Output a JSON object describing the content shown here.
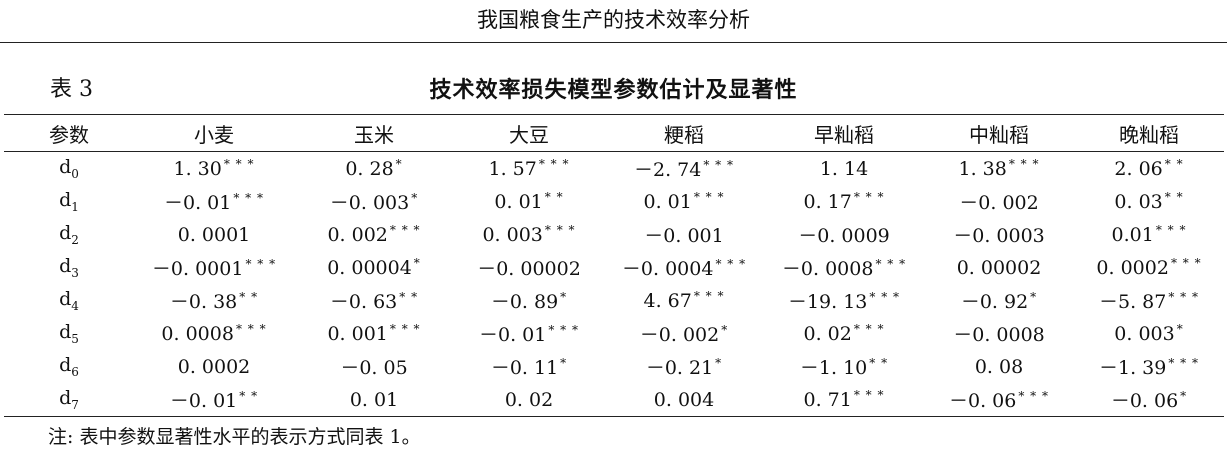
{
  "header": {
    "running_title": "我国粮食生产的技术效率分析"
  },
  "table": {
    "number": "表 3",
    "title": "技术效率损失模型参数估计及显著性",
    "columns": [
      "参数",
      "小麦",
      "玉米",
      "大豆",
      "粳稻",
      "早籼稻",
      "中籼稻",
      "晚籼稻"
    ],
    "rows": [
      {
        "base": "d",
        "sub": "0",
        "cells": [
          {
            "v": "1. 30",
            "s": "* * *"
          },
          {
            "v": "0. 28",
            "s": "*"
          },
          {
            "v": "1. 57",
            "s": "* * *"
          },
          {
            "v": "－2. 74",
            "s": "* * *"
          },
          {
            "v": "1. 14",
            "s": ""
          },
          {
            "v": "1. 38",
            "s": "* * *"
          },
          {
            "v": "2. 06",
            "s": "* *"
          }
        ]
      },
      {
        "base": "d",
        "sub": "1",
        "cells": [
          {
            "v": "－0. 01",
            "s": "* * *"
          },
          {
            "v": "－0. 003",
            "s": "*"
          },
          {
            "v": "0. 01",
            "s": "* *"
          },
          {
            "v": "0. 01",
            "s": "* * *"
          },
          {
            "v": "0. 17",
            "s": "* * *"
          },
          {
            "v": "－0. 002",
            "s": ""
          },
          {
            "v": "0. 03",
            "s": "* *"
          }
        ]
      },
      {
        "base": "d",
        "sub": "2",
        "cells": [
          {
            "v": "0. 0001",
            "s": ""
          },
          {
            "v": "0. 002",
            "s": "* * *"
          },
          {
            "v": "0. 003",
            "s": "* * *"
          },
          {
            "v": "－0. 001",
            "s": ""
          },
          {
            "v": "－0. 0009",
            "s": ""
          },
          {
            "v": "－0. 0003",
            "s": ""
          },
          {
            "v": "0.01",
            "s": "* * *"
          }
        ]
      },
      {
        "base": "d",
        "sub": "3",
        "cells": [
          {
            "v": "－0. 0001",
            "s": "* * *"
          },
          {
            "v": "0. 00004",
            "s": "*"
          },
          {
            "v": "－0. 00002",
            "s": ""
          },
          {
            "v": "－0. 0004",
            "s": "* * *"
          },
          {
            "v": "－0. 0008",
            "s": "* * *"
          },
          {
            "v": "0. 00002",
            "s": ""
          },
          {
            "v": "0. 0002",
            "s": "* * *"
          }
        ]
      },
      {
        "base": "d",
        "sub": "4",
        "cells": [
          {
            "v": "－0. 38",
            "s": "* *"
          },
          {
            "v": "－0. 63",
            "s": "* *"
          },
          {
            "v": "－0. 89",
            "s": "*"
          },
          {
            "v": "4. 67",
            "s": "* * *"
          },
          {
            "v": "－19. 13",
            "s": "* * *"
          },
          {
            "v": "－0. 92",
            "s": "*"
          },
          {
            "v": "－5. 87",
            "s": "* * *"
          }
        ]
      },
      {
        "base": "d",
        "sub": "5",
        "cells": [
          {
            "v": "0. 0008",
            "s": "* * *"
          },
          {
            "v": "0. 001",
            "s": "* * *"
          },
          {
            "v": "－0. 01",
            "s": "* * *"
          },
          {
            "v": "－0. 002",
            "s": "*"
          },
          {
            "v": "0. 02",
            "s": "* * *"
          },
          {
            "v": "－0. 0008",
            "s": ""
          },
          {
            "v": "0. 003",
            "s": "*"
          }
        ]
      },
      {
        "base": "d",
        "sub": "6",
        "cells": [
          {
            "v": "0. 0002",
            "s": ""
          },
          {
            "v": "－0. 05",
            "s": ""
          },
          {
            "v": "－0. 11",
            "s": "*"
          },
          {
            "v": "－0. 21",
            "s": "*"
          },
          {
            "v": "－1. 10",
            "s": "* *"
          },
          {
            "v": "0. 08",
            "s": ""
          },
          {
            "v": "－1. 39",
            "s": "* * *"
          }
        ]
      },
      {
        "base": "d",
        "sub": "7",
        "cells": [
          {
            "v": "－0. 01",
            "s": "* *"
          },
          {
            "v": "0. 01",
            "s": ""
          },
          {
            "v": "0. 02",
            "s": ""
          },
          {
            "v": "0. 004",
            "s": ""
          },
          {
            "v": "0. 71",
            "s": "* * *"
          },
          {
            "v": "－0. 06",
            "s": "* * *"
          },
          {
            "v": "－0. 06",
            "s": "*"
          }
        ]
      }
    ],
    "note": "注: 表中参数显著性水平的表示方式同表 1。"
  }
}
